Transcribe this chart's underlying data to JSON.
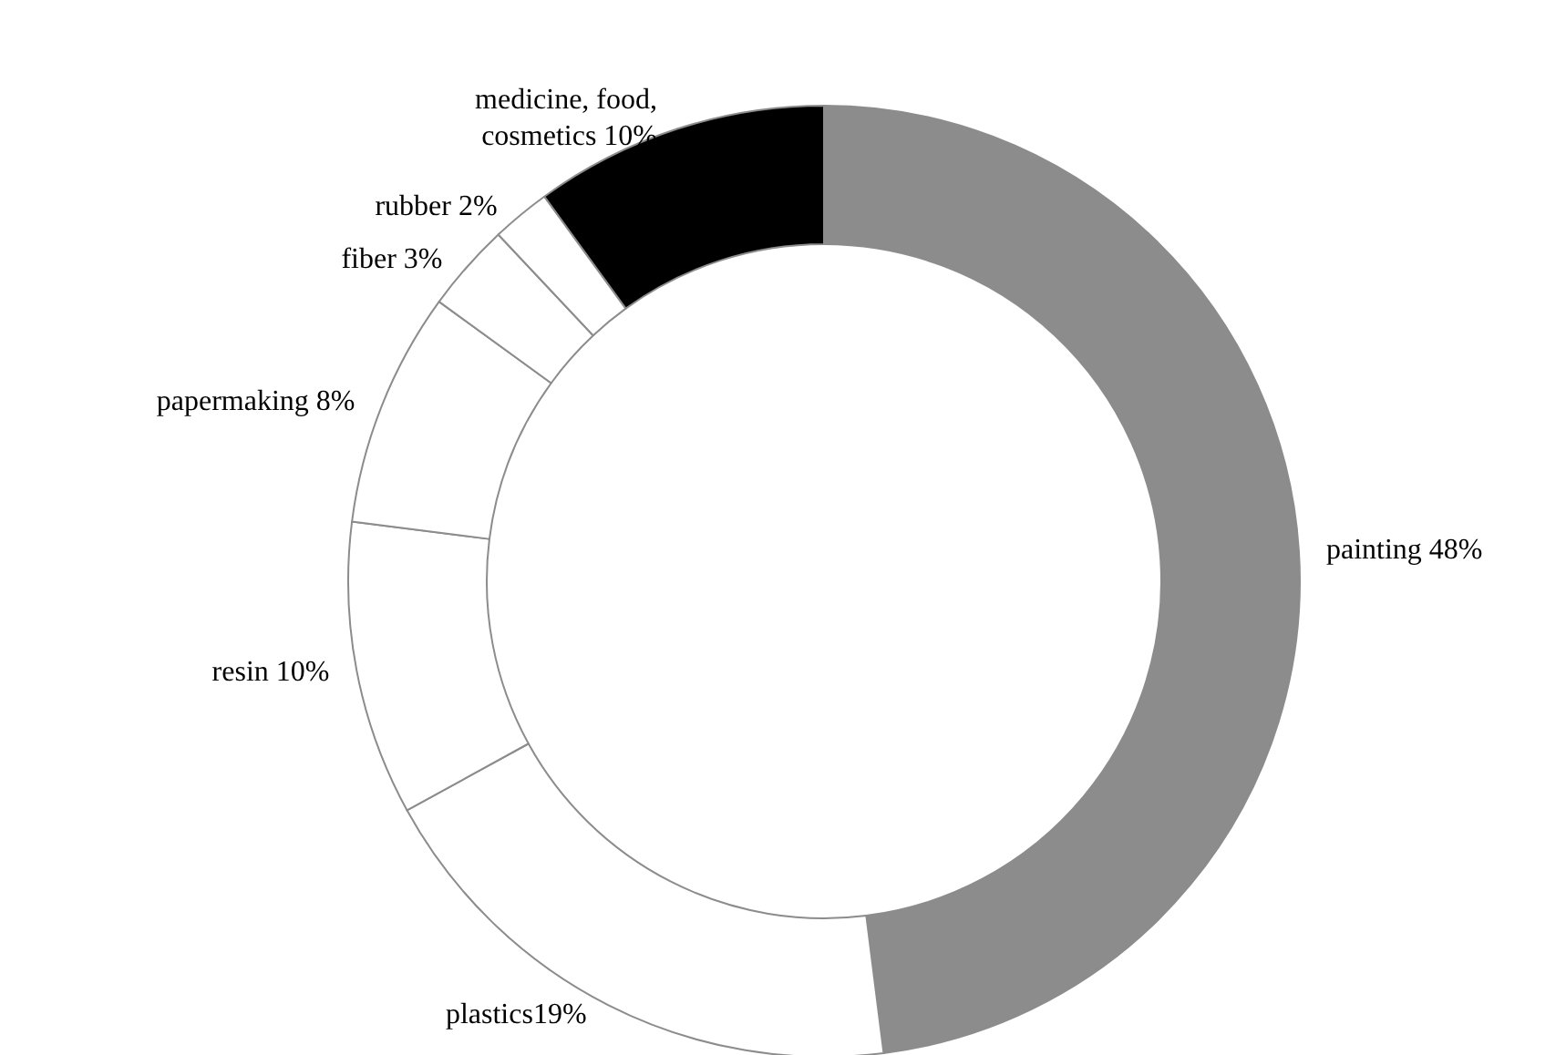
{
  "chart_data": {
    "type": "donut",
    "categories": [
      "painting",
      "plastics",
      "resin",
      "papermaking",
      "fiber",
      "rubber",
      "medicine, food,\ncosmetics"
    ],
    "values": [
      48,
      19,
      10,
      8,
      3,
      2,
      10
    ],
    "colors": [
      "#8c8c8c",
      "#ffffff",
      "#ffffff",
      "#ffffff",
      "#ffffff",
      "#ffffff",
      "#000000"
    ],
    "value_labels": [
      " 48%",
      "19%",
      " 10%",
      " 8%",
      " 3%",
      " 2%",
      " 10%"
    ],
    "legend": false
  }
}
